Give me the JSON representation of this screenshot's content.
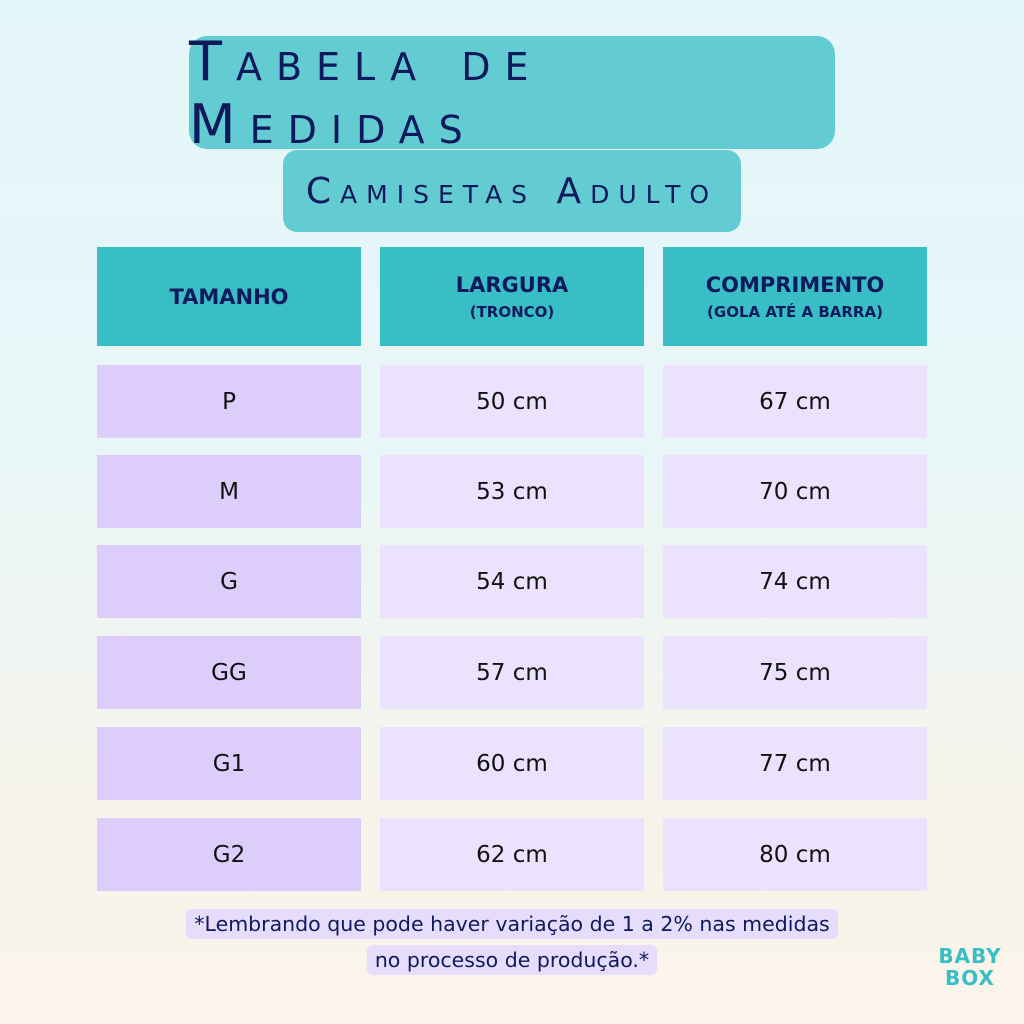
{
  "title": "Tabela de Medidas",
  "subtitle": "Camisetas Adulto",
  "table": {
    "headers": [
      {
        "label": "TAMANHO",
        "sub": ""
      },
      {
        "label": "LARGURA",
        "sub": "(TRONCO)"
      },
      {
        "label": "COMPRIMENTO",
        "sub": "(GOLA ATÉ A BARRA)"
      }
    ],
    "rows": [
      [
        "P",
        "50 cm",
        "67 cm"
      ],
      [
        "M",
        "53 cm",
        "70 cm"
      ],
      [
        "G",
        "54 cm",
        "74 cm"
      ],
      [
        "GG",
        "57 cm",
        "75 cm"
      ],
      [
        "G1",
        "60 cm",
        "77 cm"
      ],
      [
        "G2",
        "62 cm",
        "80 cm"
      ]
    ]
  },
  "note": {
    "line1": "*Lembrando que pode haver variação de 1 a 2% nas medidas",
    "line2": "no processo de produção.*"
  },
  "logo": {
    "line1": "BABY",
    "line2": "BOX"
  },
  "colors": {
    "header": "#38bec4",
    "title_bg": "#63cbd2",
    "text": "#0f1a5c",
    "size_cell": "#dccdfb",
    "value_cell": "#ebe2fd"
  }
}
